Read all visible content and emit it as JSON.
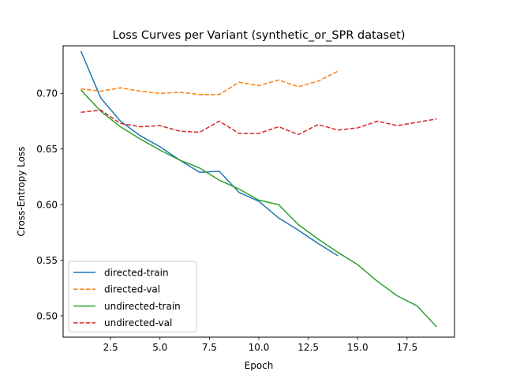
{
  "chart_data": {
    "type": "line",
    "title": "Loss Curves per Variant (synthetic_or_SPR dataset)",
    "xlabel": "Epoch",
    "ylabel": "Cross-Entropy Loss",
    "xlim": [
      0.1,
      19.9
    ],
    "ylim": [
      0.4808,
      0.7428
    ],
    "xticks": [
      2.5,
      5.0,
      7.5,
      10.0,
      12.5,
      15.0,
      17.5
    ],
    "xtick_labels": [
      "2.5",
      "5.0",
      "7.5",
      "10.0",
      "12.5",
      "15.0",
      "17.5"
    ],
    "yticks": [
      0.5,
      0.55,
      0.6,
      0.65,
      0.7
    ],
    "ytick_labels": [
      "0.50",
      "0.55",
      "0.60",
      "0.65",
      "0.70"
    ],
    "grid": false,
    "legend_position": "lower-left",
    "series": [
      {
        "name": "directed-train",
        "color": "#1f77b4",
        "dash": "solid",
        "x": [
          1,
          2,
          3,
          4,
          5,
          6,
          7,
          8,
          9,
          10,
          11,
          12,
          13,
          14
        ],
        "values": [
          0.738,
          0.696,
          0.675,
          0.662,
          0.652,
          0.64,
          0.629,
          0.63,
          0.611,
          0.603,
          0.588,
          0.577,
          0.565,
          0.554
        ]
      },
      {
        "name": "directed-val",
        "color": "#ff7f0e",
        "dash": "dashed",
        "x": [
          1,
          2,
          3,
          4,
          5,
          6,
          7,
          8,
          9,
          10,
          11,
          12,
          13,
          14
        ],
        "values": [
          0.704,
          0.702,
          0.705,
          0.702,
          0.7,
          0.701,
          0.699,
          0.699,
          0.71,
          0.707,
          0.712,
          0.706,
          0.711,
          0.72
        ]
      },
      {
        "name": "undirected-train",
        "color": "#2ca02c",
        "dash": "solid",
        "x": [
          1,
          2,
          3,
          4,
          5,
          6,
          7,
          8,
          9,
          10,
          11,
          12,
          13,
          14,
          15,
          16,
          17,
          18,
          19
        ],
        "values": [
          0.703,
          0.684,
          0.67,
          0.659,
          0.649,
          0.64,
          0.633,
          0.622,
          0.614,
          0.604,
          0.6,
          0.582,
          0.569,
          0.557,
          0.546,
          0.531,
          0.518,
          0.509,
          0.49
        ]
      },
      {
        "name": "undirected-val",
        "color": "#d62728",
        "dash": "dashed",
        "x": [
          1,
          2,
          3,
          4,
          5,
          6,
          7,
          8,
          9,
          10,
          11,
          12,
          13,
          14,
          15,
          16,
          17,
          18,
          19
        ],
        "values": [
          0.683,
          0.685,
          0.673,
          0.67,
          0.671,
          0.666,
          0.665,
          0.675,
          0.664,
          0.664,
          0.67,
          0.663,
          0.672,
          0.667,
          0.669,
          0.675,
          0.671,
          0.674,
          0.677
        ]
      }
    ]
  }
}
